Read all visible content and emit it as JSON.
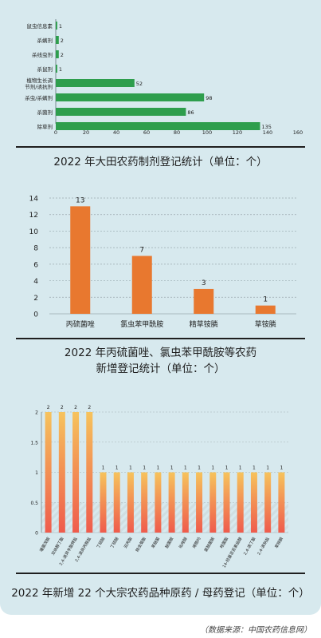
{
  "chart_data": [
    {
      "type": "bar",
      "orientation": "horizontal",
      "title": "2022 年大田农药制剂登记统计（单位：个）",
      "categories": [
        "鼠虫信息素",
        "杀螨剂",
        "杀线虫剂",
        "杀鼠剂",
        "植物生长调节剂/诱抗剂",
        "杀虫/杀螨剂",
        "杀菌剂",
        "除草剂"
      ],
      "category_lines": [
        [
          "鼠虫信息素"
        ],
        [
          "杀螨剂"
        ],
        [
          "杀线虫剂"
        ],
        [
          "杀鼠剂"
        ],
        [
          "植物生长调",
          "节剂/诱抗剂"
        ],
        [
          "杀虫/杀螨剂"
        ],
        [
          "杀菌剂"
        ],
        [
          "除草剂"
        ]
      ],
      "values": [
        1,
        2,
        2,
        1,
        52,
        98,
        86,
        135
      ],
      "xlim": [
        0,
        160
      ],
      "xticks": [
        0,
        20,
        40,
        60,
        80,
        100,
        120,
        140,
        160
      ],
      "color": "#2e9e4d",
      "grid": false
    },
    {
      "type": "bar",
      "title": "2022 年丙硫菌唑、氯虫苯甲酰胺等农药新增登记统计（单位：个）",
      "title_lines": [
        "2022 年丙硫菌唑、氯虫苯甲酰胺等农药",
        "新增登记统计（单位：个）"
      ],
      "categories": [
        "丙硫菌唑",
        "氯虫苯甲酰胺",
        "精草铵膦",
        "草铵膦"
      ],
      "values": [
        13,
        7,
        3,
        1
      ],
      "ylim": [
        0,
        14
      ],
      "yticks": [
        0,
        2,
        4,
        6,
        8,
        10,
        12,
        14
      ],
      "color": "#e8782f",
      "grid": true
    },
    {
      "type": "bar",
      "title": "2022 年新增 22 个大宗农药品种原药 / 母药登记（单位：个）",
      "categories": [
        "噻菌茂胺",
        "双炔醇丁酯",
        "2,4-滴异辛酯钾盐",
        "2,4-滴异丙胺盐",
        "丁硫醚",
        "丁硫醚",
        "双丙酯",
        "除虫菊酯",
        "苯醚菌",
        "醚菌胺",
        "吡唑醚",
        "烯酰吗",
        "氯醚菌胺",
        "嘧菌酯",
        "14-羟基芸苔素甾醇",
        "2,4-滴丁酸",
        "2,4-滴钠盐",
        "草铵膦"
      ],
      "values": [
        2,
        2,
        2,
        2,
        1,
        1,
        1,
        1,
        1,
        1,
        1,
        1,
        1,
        1,
        1,
        1,
        1,
        1
      ],
      "ylim": [
        0,
        2
      ],
      "yticks": [
        0,
        0.5,
        1,
        1.5,
        2
      ],
      "gradient": [
        "#f6c35c",
        "#ef5b4c"
      ],
      "grid": true
    }
  ],
  "source_note": "（数据来源：中国农药信息网）"
}
